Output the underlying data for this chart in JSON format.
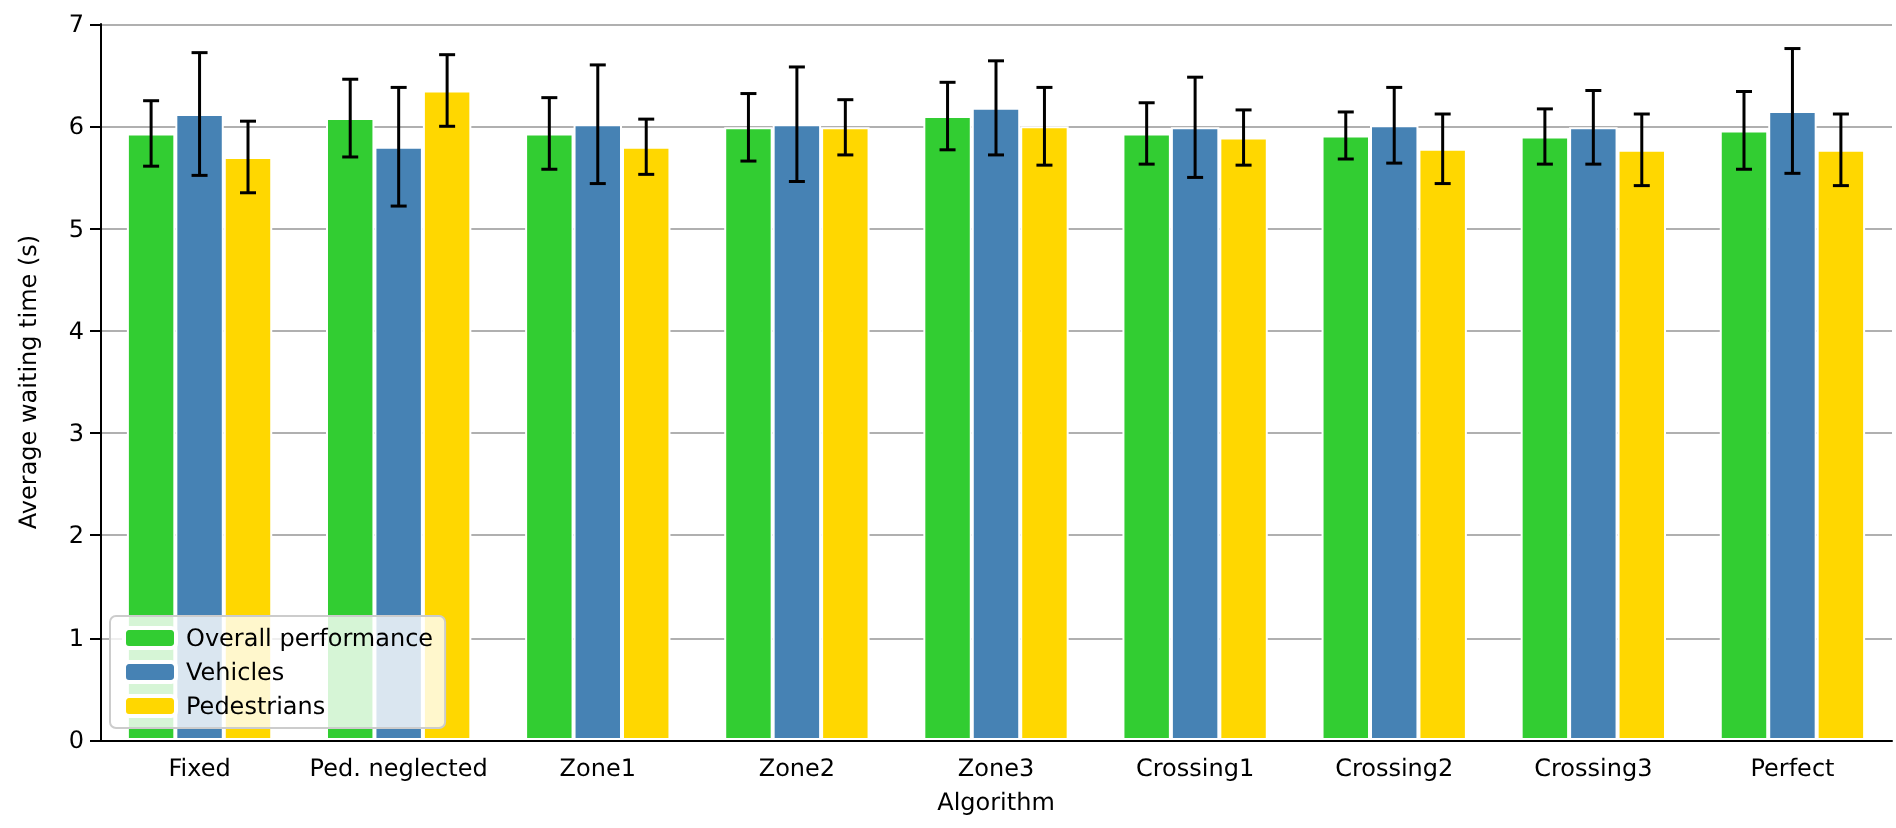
{
  "chart_data": {
    "type": "bar",
    "xlabel": "Algorithm",
    "ylabel": "Average waiting time (s)",
    "categories": [
      "Fixed",
      "Ped. neglected",
      "Zone1",
      "Zone2",
      "Zone3",
      "Crossing1",
      "Crossing2",
      "Crossing3",
      "Perfect"
    ],
    "series": [
      {
        "name": "Overall performance",
        "color": "#32cd32",
        "values": [
          5.93,
          6.08,
          5.93,
          5.99,
          6.1,
          5.93,
          5.91,
          5.9,
          5.96
        ],
        "errors": [
          0.32,
          0.38,
          0.35,
          0.33,
          0.33,
          0.3,
          0.23,
          0.27,
          0.38
        ]
      },
      {
        "name": "Vehicles",
        "color": "#4682b4",
        "values": [
          6.12,
          5.8,
          6.02,
          6.02,
          6.18,
          5.99,
          6.01,
          5.99,
          6.15
        ],
        "errors": [
          0.6,
          0.58,
          0.58,
          0.56,
          0.46,
          0.49,
          0.37,
          0.36,
          0.61
        ]
      },
      {
        "name": "Pedestrians",
        "color": "#ffd700",
        "values": [
          5.7,
          6.35,
          5.8,
          5.99,
          6.0,
          5.89,
          5.78,
          5.77,
          5.77
        ],
        "errors": [
          0.35,
          0.35,
          0.27,
          0.27,
          0.38,
          0.27,
          0.34,
          0.35,
          0.35
        ]
      }
    ],
    "ylim": [
      0,
      7
    ],
    "yticks": [
      0,
      1,
      2,
      3,
      4,
      5,
      6,
      7
    ],
    "grid": "y",
    "legend": "bottom left"
  }
}
